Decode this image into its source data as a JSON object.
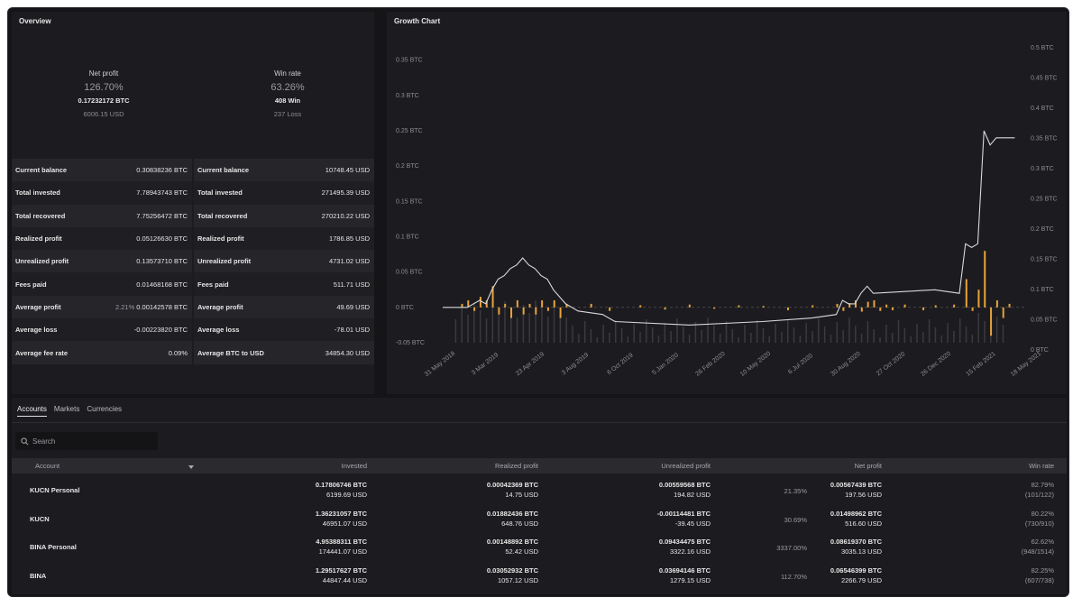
{
  "overview": {
    "title": "Overview",
    "net_profit": {
      "label": "Net profit",
      "pct": "126.70%",
      "btc": "0.17232172 BTC",
      "usd": "6006.15 USD"
    },
    "win_rate": {
      "label": "Win rate",
      "pct": "63.26%",
      "wins": "408 Win",
      "losses": "237 Loss"
    },
    "btc_rows": [
      {
        "k": "Current balance",
        "v": "0.30838236 BTC"
      },
      {
        "k": "Total invested",
        "v": "7.78943743 BTC"
      },
      {
        "k": "Total recovered",
        "v": "7.75256472 BTC"
      },
      {
        "k": "Realized profit",
        "v": "0.05126630 BTC"
      },
      {
        "k": "Unrealized profit",
        "v": "0.13573710 BTC"
      },
      {
        "k": "Fees paid",
        "v": "0.01468168 BTC"
      },
      {
        "k": "Average profit",
        "pre": "2.21%",
        "v": "0.00142578 BTC"
      },
      {
        "k": "Average loss",
        "v": "-0.00223820 BTC"
      },
      {
        "k": "Average fee rate",
        "v": "0.09%"
      }
    ],
    "usd_rows": [
      {
        "k": "Current balance",
        "v": "10748.45 USD"
      },
      {
        "k": "Total invested",
        "v": "271495.39 USD"
      },
      {
        "k": "Total recovered",
        "v": "270210.22 USD"
      },
      {
        "k": "Realized profit",
        "v": "1786.85 USD"
      },
      {
        "k": "Unrealized profit",
        "v": "4731.02 USD"
      },
      {
        "k": "Fees paid",
        "v": "511.71 USD"
      },
      {
        "k": "Average profit",
        "v": "49.69 USD"
      },
      {
        "k": "Average loss",
        "v": "-78.01 USD"
      },
      {
        "k": "Average BTC to USD",
        "v": "34854.30 USD"
      }
    ]
  },
  "growth": {
    "title": "Growth Chart",
    "colors": {
      "line": "#d9d9dc",
      "bars": "#e8a33a",
      "volume": "#3a3a3f"
    }
  },
  "chart_data": {
    "type": "line",
    "x_ticks": [
      "31 May 2018",
      "3 Mar 2019",
      "23 Apr 2019",
      "3 Aug 2019",
      "6 Oct 2019",
      "5 Jan 2020",
      "26 Feb 2020",
      "10 May 2020",
      "6 Jul 2020",
      "30 Aug 2020",
      "27 Oct 2020",
      "26 Dec 2020",
      "15 Feb 2021",
      "18 May 2021"
    ],
    "left_ticks": [
      "0.35 BTC",
      "0.3 BTC",
      "0.25 BTC",
      "0.2 BTC",
      "0.15 BTC",
      "0.1 BTC",
      "0.05 BTC",
      "0 BTC",
      "-0.05 BTC"
    ],
    "right_ticks": [
      "0.5 BTC",
      "0.45 BTC",
      "0.4 BTC",
      "0.35 BTC",
      "0.3 BTC",
      "0.25 BTC",
      "0.2 BTC",
      "0.15 BTC",
      "0.1 BTC",
      "0.05 BTC",
      "0 BTC"
    ],
    "ylim": [
      -0.05,
      0.37
    ],
    "line": [
      [
        0,
        0
      ],
      [
        4,
        0
      ],
      [
        6,
        0.01
      ],
      [
        7,
        0.005
      ],
      [
        8,
        0.025
      ],
      [
        9,
        0.04
      ],
      [
        10,
        0.045
      ],
      [
        11,
        0.055
      ],
      [
        12,
        0.06
      ],
      [
        13,
        0.07
      ],
      [
        14,
        0.06
      ],
      [
        15,
        0.055
      ],
      [
        16,
        0.045
      ],
      [
        17,
        0.04
      ],
      [
        18,
        0.025
      ],
      [
        19,
        0.015
      ],
      [
        20,
        0.005
      ],
      [
        22,
        -0.005
      ],
      [
        26,
        -0.01
      ],
      [
        28,
        -0.02
      ],
      [
        40,
        -0.025
      ],
      [
        52,
        -0.02
      ],
      [
        60,
        -0.015
      ],
      [
        64,
        -0.01
      ],
      [
        65,
        0.01
      ],
      [
        66,
        0.005
      ],
      [
        67,
        0.005
      ],
      [
        68,
        0.02
      ],
      [
        69,
        0.03
      ],
      [
        70,
        0.02
      ],
      [
        80,
        0.025
      ],
      [
        84,
        0.02
      ],
      [
        85,
        0.09
      ],
      [
        86,
        0.085
      ],
      [
        87,
        0.09
      ],
      [
        88,
        0.25
      ],
      [
        89,
        0.23
      ],
      [
        90,
        0.24
      ],
      [
        92,
        0.24
      ],
      [
        93,
        0.24
      ]
    ],
    "bars": [
      [
        3,
        0.005
      ],
      [
        4,
        0.01
      ],
      [
        5,
        -0.005
      ],
      [
        6,
        0.015
      ],
      [
        7,
        0.01
      ],
      [
        8,
        0.03
      ],
      [
        9,
        -0.01
      ],
      [
        10,
        0.005
      ],
      [
        11,
        -0.015
      ],
      [
        12,
        0.01
      ],
      [
        13,
        -0.01
      ],
      [
        14,
        0.005
      ],
      [
        15,
        -0.01
      ],
      [
        16,
        0.01
      ],
      [
        17,
        -0.005
      ],
      [
        18,
        0.01
      ],
      [
        19,
        -0.015
      ],
      [
        20,
        0.005
      ],
      [
        24,
        0.005
      ],
      [
        27,
        -0.005
      ],
      [
        32,
        0.003
      ],
      [
        36,
        -0.003
      ],
      [
        40,
        0.004
      ],
      [
        44,
        -0.002
      ],
      [
        48,
        0.003
      ],
      [
        52,
        0.002
      ],
      [
        56,
        -0.004
      ],
      [
        60,
        0.003
      ],
      [
        64,
        0.005
      ],
      [
        65,
        -0.005
      ],
      [
        66,
        0.006
      ],
      [
        67,
        0.01
      ],
      [
        68,
        -0.006
      ],
      [
        69,
        0.008
      ],
      [
        70,
        0.01
      ],
      [
        71,
        -0.005
      ],
      [
        72,
        0.004
      ],
      [
        73,
        -0.004
      ],
      [
        75,
        0.004
      ],
      [
        78,
        -0.004
      ],
      [
        80,
        0.003
      ],
      [
        83,
        0.004
      ],
      [
        85,
        0.04
      ],
      [
        86,
        -0.005
      ],
      [
        87,
        0.025
      ],
      [
        88,
        0.08
      ],
      [
        89,
        -0.04
      ],
      [
        90,
        0.01
      ],
      [
        91,
        -0.015
      ],
      [
        92,
        0.005
      ]
    ]
  },
  "bottom": {
    "tabs": [
      "Accounts",
      "Markets",
      "Currencies"
    ],
    "search_placeholder": "Search",
    "headers": {
      "account": "Account",
      "invested": "Invested",
      "realized": "Realized profit",
      "unrealized": "Unrealized profit",
      "net": "Net profit",
      "win": "Win rate"
    },
    "rows": [
      {
        "name": "KUCN Personal",
        "inv_btc": "0.17806746 BTC",
        "inv_usd": "6199.69 USD",
        "real_btc": "0.00042369 BTC",
        "real_usd": "14.75 USD",
        "unr_btc": "0.00559568 BTC",
        "unr_usd": "194.82 USD",
        "net_pct": "21.35%",
        "net_btc": "0.00567439 BTC",
        "net_usd": "197.56 USD",
        "win_pct": "82.79%",
        "win_ratio": "(101/122)"
      },
      {
        "name": "KUCN",
        "inv_btc": "1.36231057 BTC",
        "inv_usd": "46951.07 USD",
        "real_btc": "0.01882436 BTC",
        "real_usd": "648.76 USD",
        "unr_btc": "-0.00114481 BTC",
        "unr_usd": "-39.45 USD",
        "net_pct": "30.69%",
        "net_btc": "0.01498962 BTC",
        "net_usd": "516.60 USD",
        "win_pct": "80.22%",
        "win_ratio": "(730/910)"
      },
      {
        "name": "BINA Personal",
        "inv_btc": "4.95388311 BTC",
        "inv_usd": "174441.07 USD",
        "real_btc": "0.00148892 BTC",
        "real_usd": "52.42 USD",
        "unr_btc": "0.09434475 BTC",
        "unr_usd": "3322.16 USD",
        "net_pct": "3337.00%",
        "net_btc": "0.08619370 BTC",
        "net_usd": "3035.13 USD",
        "win_pct": "62.62%",
        "win_ratio": "(948/1514)"
      },
      {
        "name": "BINA",
        "inv_btc": "1.29517627 BTC",
        "inv_usd": "44847.44 USD",
        "real_btc": "0.03052932 BTC",
        "real_usd": "1057.12 USD",
        "unr_btc": "0.03694146 BTC",
        "unr_usd": "1279.15 USD",
        "net_pct": "112.70%",
        "net_btc": "0.06546399 BTC",
        "net_usd": "2266.79 USD",
        "win_pct": "82.25%",
        "win_ratio": "(607/738)"
      }
    ]
  }
}
